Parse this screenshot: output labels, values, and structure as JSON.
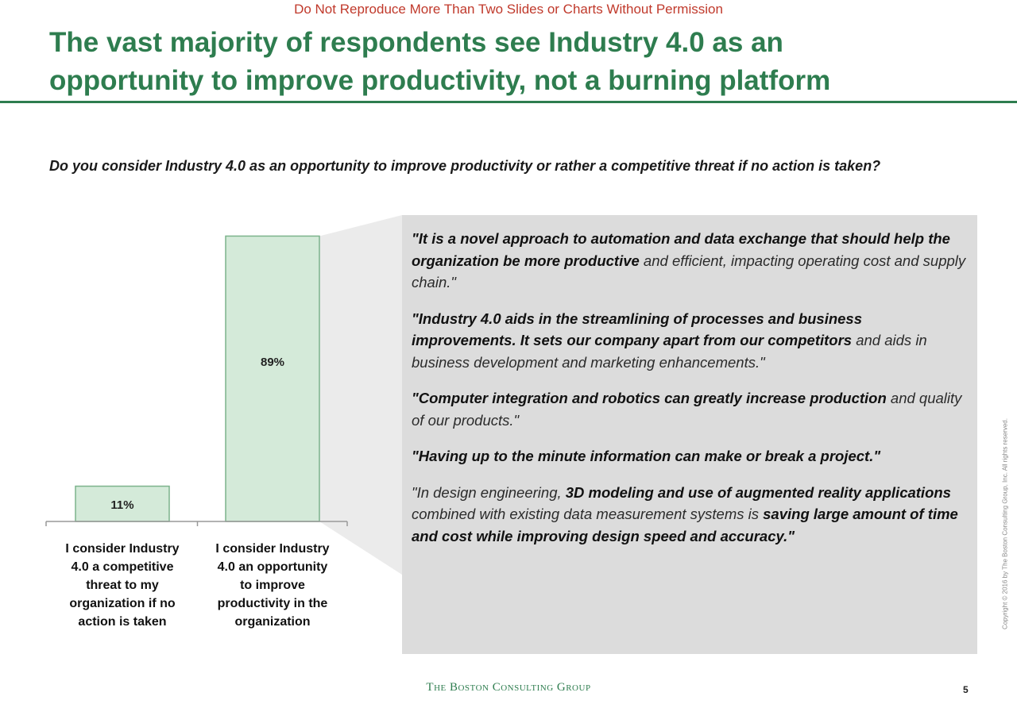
{
  "header": {
    "notice": "Do Not Reproduce More Than Two Slides or Charts Without Permission",
    "title_line1": "The vast majority of respondents see Industry 4.0 as an",
    "title_line2": "opportunity to improve productivity, not a burning platform"
  },
  "question": "Do you consider Industry 4.0 as an opportunity to improve productivity or rather a competitive threat if no action is taken?",
  "chart_data": {
    "type": "bar",
    "categories": [
      "I consider Industry 4.0 a competitive threat to my organization if no action is taken",
      "I consider Industry 4.0 an opportunity to improve productivity in the organization"
    ],
    "category_lines": [
      [
        "I consider Industry",
        "4.0 a competitive",
        "threat to my",
        "organization if no",
        "action is taken"
      ],
      [
        "I consider Industry",
        "4.0 an opportunity",
        "to improve",
        "productivity in the",
        "organization"
      ]
    ],
    "values": [
      11,
      89
    ],
    "data_labels": [
      "11%",
      "89%"
    ],
    "unit": "%",
    "ylim": [
      0,
      100
    ],
    "grid": false,
    "bar_color": "#d4ead9",
    "bar_border": "#7cb38c"
  },
  "quotes": [
    {
      "bold": "\"It is a novel approach to automation and data exchange that should help the organization be more productive",
      "rest": " and efficient, impacting operating cost and supply chain.\""
    },
    {
      "bold": "\"Industry 4.0 aids in the streamlining of processes and business improvements. It sets our company apart from our competitors",
      "rest": " and aids in business development and marketing enhancements.\""
    },
    {
      "bold": "\"Computer integration and robotics can greatly increase production",
      "rest": " and quality of our products.\""
    },
    {
      "bold": "\"Having up to the minute information can make or break a project.\"",
      "rest": ""
    },
    {
      "pre": "\"In design engineering, ",
      "bold": "3D modeling and use of augmented reality applications",
      "mid": " combined with existing data measurement systems is ",
      "bold2": "saving large amount of time and cost while improving design speed and accuracy.\""
    }
  ],
  "footer": {
    "brand": "The Boston Consulting Group",
    "page_number": "5",
    "copyright": "Copyright © 2016 by The Boston Consulting Group, Inc. All rights reserved."
  },
  "colors": {
    "title_green": "#2e7d4f",
    "notice_red": "#c0392b",
    "panel_gray": "#dcdcdc"
  }
}
